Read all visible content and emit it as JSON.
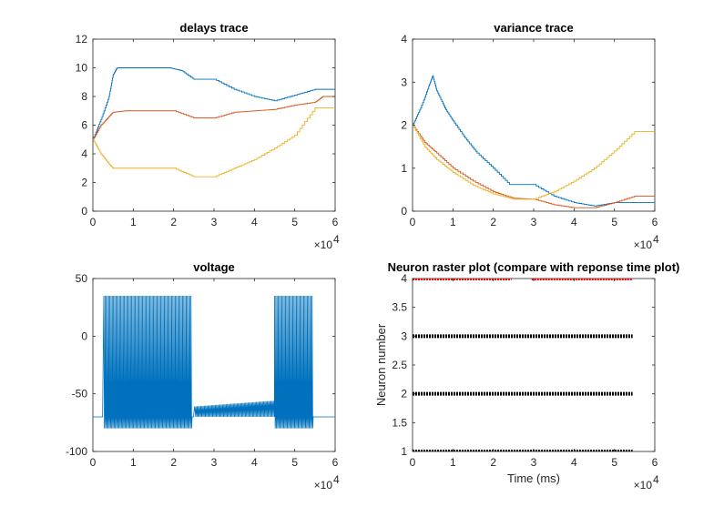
{
  "chart_data": [
    {
      "type": "line",
      "title": "delays trace",
      "xlim": [
        0,
        60000
      ],
      "ylim": [
        0,
        12
      ],
      "x_ticks": [
        "0",
        "1",
        "2",
        "3",
        "4",
        "5",
        "6"
      ],
      "y_ticks": [
        "0",
        "2",
        "4",
        "6",
        "8",
        "10",
        "12"
      ],
      "x_multiplier": "×10",
      "x_multiplier_exp": "4",
      "grid": false,
      "series": [
        {
          "color": "#0072BD",
          "points": [
            [
              0,
              5
            ],
            [
              2000,
              6.4
            ],
            [
              4000,
              8
            ],
            [
              5000,
              9.5
            ],
            [
              6000,
              10
            ],
            [
              10000,
              10
            ],
            [
              15000,
              10
            ],
            [
              19000,
              10
            ],
            [
              22000,
              9.8
            ],
            [
              25000,
              9.2
            ],
            [
              30000,
              9.2
            ],
            [
              35000,
              8.5
            ],
            [
              40000,
              8
            ],
            [
              45000,
              7.7
            ],
            [
              50000,
              8.1
            ],
            [
              55000,
              8.5
            ],
            [
              60000,
              8.5
            ]
          ]
        },
        {
          "color": "#D95319",
          "points": [
            [
              0,
              5
            ],
            [
              2000,
              6
            ],
            [
              4000,
              6.6
            ],
            [
              5000,
              6.9
            ],
            [
              8000,
              7
            ],
            [
              12000,
              7
            ],
            [
              16000,
              7
            ],
            [
              20000,
              7
            ],
            [
              25000,
              6.5
            ],
            [
              30000,
              6.5
            ],
            [
              35000,
              6.9
            ],
            [
              40000,
              7
            ],
            [
              45000,
              7.1
            ],
            [
              50000,
              7.4
            ],
            [
              55000,
              7.6
            ],
            [
              57000,
              8
            ],
            [
              60000,
              8
            ]
          ]
        },
        {
          "color": "#EDB120",
          "points": [
            [
              0,
              5
            ],
            [
              2000,
              4
            ],
            [
              4000,
              3.3
            ],
            [
              5000,
              3
            ],
            [
              8000,
              3
            ],
            [
              12000,
              3
            ],
            [
              16000,
              3
            ],
            [
              20000,
              3
            ],
            [
              25000,
              2.4
            ],
            [
              30000,
              2.4
            ],
            [
              35000,
              3
            ],
            [
              40000,
              3.6
            ],
            [
              45000,
              4.4
            ],
            [
              50000,
              5.3
            ],
            [
              55000,
              7.2
            ],
            [
              60000,
              7.2
            ]
          ]
        }
      ]
    },
    {
      "type": "line",
      "title": "variance trace",
      "xlim": [
        0,
        60000
      ],
      "ylim": [
        0,
        4
      ],
      "x_ticks": [
        "0",
        "1",
        "2",
        "3",
        "4",
        "5",
        "6"
      ],
      "y_ticks": [
        "0",
        "1",
        "2",
        "3",
        "4"
      ],
      "x_multiplier": "×10",
      "x_multiplier_exp": "4",
      "grid": false,
      "series": [
        {
          "color": "#0072BD",
          "points": [
            [
              0,
              2
            ],
            [
              2000,
              2.4
            ],
            [
              4000,
              2.9
            ],
            [
              5000,
              3.15
            ],
            [
              6000,
              2.8
            ],
            [
              8000,
              2.4
            ],
            [
              10000,
              2.1
            ],
            [
              13000,
              1.7
            ],
            [
              16000,
              1.35
            ],
            [
              20000,
              1
            ],
            [
              24000,
              0.62
            ],
            [
              26000,
              0.62
            ],
            [
              30000,
              0.62
            ],
            [
              35000,
              0.35
            ],
            [
              40000,
              0.2
            ],
            [
              45000,
              0.12
            ],
            [
              50000,
              0.2
            ],
            [
              55000,
              0.2
            ],
            [
              60000,
              0.2
            ]
          ]
        },
        {
          "color": "#D95319",
          "points": [
            [
              0,
              2
            ],
            [
              3000,
              1.6
            ],
            [
              6000,
              1.35
            ],
            [
              10000,
              1
            ],
            [
              15000,
              0.7
            ],
            [
              20000,
              0.45
            ],
            [
              25000,
              0.3
            ],
            [
              30000,
              0.28
            ],
            [
              35000,
              0.15
            ],
            [
              40000,
              0.08
            ],
            [
              45000,
              0.08
            ],
            [
              50000,
              0.2
            ],
            [
              55000,
              0.35
            ],
            [
              60000,
              0.35
            ]
          ]
        },
        {
          "color": "#EDB120",
          "points": [
            [
              0,
              2
            ],
            [
              3000,
              1.5
            ],
            [
              6000,
              1.2
            ],
            [
              10000,
              0.9
            ],
            [
              15000,
              0.6
            ],
            [
              20000,
              0.4
            ],
            [
              25000,
              0.28
            ],
            [
              30000,
              0.28
            ],
            [
              35000,
              0.45
            ],
            [
              40000,
              0.7
            ],
            [
              45000,
              1
            ],
            [
              50000,
              1.4
            ],
            [
              55000,
              1.85
            ],
            [
              60000,
              1.85
            ]
          ]
        }
      ]
    },
    {
      "type": "line",
      "title": "voltage",
      "xlim": [
        0,
        60000
      ],
      "ylim": [
        -100,
        50
      ],
      "x_ticks": [
        "0",
        "1",
        "2",
        "3",
        "4",
        "5",
        "6"
      ],
      "y_ticks": [
        "-100",
        "-50",
        "0",
        "50"
      ],
      "x_multiplier": "×10",
      "x_multiplier_exp": "4",
      "grid": false,
      "series": [
        {
          "color": "#0072BD",
          "baseline": -70,
          "spike_peak": 35,
          "spike_trough": -80,
          "spike_windows": [
            [
              2500,
              24500
            ],
            [
              44800,
              54500
            ]
          ],
          "spike_period": 600,
          "plateau": {
            "x": [
              25000,
              44800
            ],
            "y_start": -63,
            "y_end": -58,
            "amplitude": 4
          },
          "end_x": 54500
        }
      ]
    },
    {
      "type": "scatter",
      "title": "Neuron raster plot (compare with reponse time plot)",
      "xlabel": "Time (ms)",
      "ylabel": "Neuron number",
      "xlim": [
        0,
        60000
      ],
      "ylim": [
        1,
        4
      ],
      "x_ticks": [
        "0",
        "1",
        "2",
        "3",
        "4",
        "5",
        "6"
      ],
      "y_ticks": [
        "1",
        "1.5",
        "2",
        "2.5",
        "3",
        "3.5",
        "4"
      ],
      "x_multiplier": "×10",
      "x_multiplier_exp": "4",
      "grid": false,
      "series": [
        {
          "neuron": 4,
          "color": "#FF0000",
          "segments": [
            [
              0,
              24500
            ],
            [
              29500,
              54500
            ]
          ]
        },
        {
          "neuron": 3,
          "color": "#000000",
          "segments": [
            [
              0,
              54500
            ]
          ]
        },
        {
          "neuron": 2,
          "color": "#000000",
          "segments": [
            [
              0,
              54500
            ]
          ]
        },
        {
          "neuron": 1,
          "color": "#000000",
          "segments": [
            [
              0,
              54500
            ]
          ]
        }
      ]
    }
  ]
}
